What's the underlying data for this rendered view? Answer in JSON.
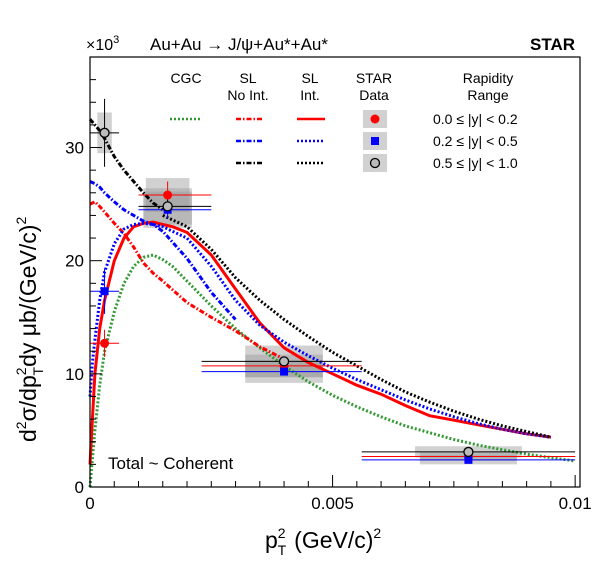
{
  "chart_data": {
    "type": "line",
    "title": "Au+Au → J/ψ+Au*+Au*",
    "experiment": "STAR",
    "annotation": "Total ~ Coherent",
    "x_multiplier": "",
    "y_multiplier": "×10",
    "y_multiplier_exp": "3",
    "xlabel_main": "p",
    "xlabel_sup": "2",
    "xlabel_sub": "T",
    "xlabel_rest": "(GeV/c)",
    "xlabel_rest_sup": "2",
    "ylabel": "d²σ/dp_T²dy μb/(GeV/c)²",
    "ylabel_parts": {
      "a": "d",
      "a_sup": "2",
      "b": "σ/dp",
      "b_sub": "T",
      "b_sup": "2",
      "c": "dy μb/(GeV/c)",
      "c_sup": "2"
    },
    "xlim": [
      0,
      0.0101
    ],
    "ylim": [
      0,
      38
    ],
    "xticks": [
      0,
      0.005,
      0.01
    ],
    "xtick_labels": [
      "0",
      "0.005",
      "0.01"
    ],
    "yticks": [
      0,
      10,
      20,
      30
    ],
    "ytick_labels": [
      "0",
      "10",
      "20",
      "30"
    ],
    "legend": {
      "columns": [
        {
          "line1": "CGC",
          "line2": ""
        },
        {
          "line1": "SL",
          "line2": "No Int."
        },
        {
          "line1": "SL",
          "line2": "Int."
        },
        {
          "line1": "STAR",
          "line2": "Data"
        },
        {
          "line1": "Rapidity",
          "line2": "Range"
        }
      ],
      "rows": [
        {
          "range": "0.0 ≤ |y| < 0.2",
          "color": "#ff0000"
        },
        {
          "range": "0.2 ≤ |y| < 0.5",
          "color": "#0000ff"
        },
        {
          "range": "0.5 ≤ |y| < 1.0",
          "color": "#000000"
        }
      ],
      "cgc_color": "#339933",
      "placement": "top"
    },
    "series": [
      {
        "model": "CGC",
        "rapidity": "0.0 ≤ |y| < 0.2",
        "color": "#339933",
        "style": "dotted",
        "x": [
          0,
          5e-05,
          0.0001,
          0.0002,
          0.0003,
          0.0005,
          0.0007,
          0.0009,
          0.0011,
          0.0013,
          0.0015,
          0.0017,
          0.002,
          0.0025,
          0.003,
          0.0035,
          0.004,
          0.0045,
          0.005,
          0.0055,
          0.006,
          0.0065,
          0.007,
          0.0075,
          0.008,
          0.0085,
          0.009,
          0.0095,
          0.01
        ],
        "y": [
          0,
          2.5,
          5,
          9,
          12,
          15.5,
          18,
          19.5,
          20.3,
          20.5,
          20.1,
          19.5,
          18.2,
          16,
          14,
          12.3,
          10.7,
          9.3,
          8.1,
          7.1,
          6.2,
          5.4,
          4.8,
          4.2,
          3.7,
          3.3,
          2.9,
          2.6,
          2.3
        ]
      },
      {
        "model": "SL No Int.",
        "rapidity": "0.0 ≤ |y| < 0.2",
        "color": "#ff0000",
        "style": "dash-dot",
        "x": [
          0,
          0.0001,
          0.0002,
          0.0003,
          0.0005,
          0.0007,
          0.0009,
          0.0011,
          0.0013,
          0.0015,
          0.002,
          0.0025,
          0.003,
          0.0035,
          0.004
        ],
        "y": [
          25,
          25.2,
          24.8,
          24.3,
          23.3,
          22.4,
          21.2,
          19.8,
          18.9,
          18.2,
          16.3,
          15,
          13.8,
          12.4,
          11.3
        ]
      },
      {
        "model": "SL Int.",
        "rapidity": "0.0 ≤ |y| < 0.2",
        "color": "#ff0000",
        "style": "solid",
        "x": [
          0,
          5e-05,
          0.0001,
          0.0002,
          0.0003,
          0.0005,
          0.0007,
          0.0009,
          0.0011,
          0.0013,
          0.0015,
          0.0017,
          0.002,
          0.0025,
          0.003,
          0.0035,
          0.004,
          0.0045,
          0.005,
          0.0055,
          0.006,
          0.0065,
          0.007,
          0.0075,
          0.008,
          0.0085,
          0.009,
          0.0095
        ],
        "y": [
          2,
          6,
          10,
          14,
          16.5,
          20,
          22,
          23,
          23.3,
          23.4,
          23.2,
          23,
          22.5,
          20.5,
          17.5,
          14.5,
          12.3,
          11,
          10,
          9,
          8.2,
          7.2,
          6.3,
          5.9,
          5.5,
          5.1,
          4.7,
          4.4
        ]
      },
      {
        "model": "SL No Int.",
        "rapidity": "0.2 ≤ |y| < 0.5",
        "color": "#0000ff",
        "style": "dash-dot",
        "x": [
          0,
          0.0001,
          0.0002,
          0.0003,
          0.0005,
          0.0007,
          0.0009,
          0.0011,
          0.0013,
          0.0015,
          0.002,
          0.0025,
          0.003
        ],
        "y": [
          27,
          26.8,
          26.5,
          26,
          25.2,
          24.5,
          24,
          23.5,
          23.2,
          22.6,
          20.2,
          17.2,
          14.8
        ]
      },
      {
        "model": "SL Int.",
        "rapidity": "0.2 ≤ |y| < 0.5",
        "color": "#0000ff",
        "style": "dotted",
        "x": [
          0,
          5e-05,
          0.0001,
          0.0002,
          0.0003,
          0.0005,
          0.0007,
          0.0009,
          0.0011,
          0.0013,
          0.0015,
          0.0017,
          0.002,
          0.0025,
          0.003,
          0.0035,
          0.004,
          0.0045,
          0.005,
          0.0055,
          0.006,
          0.0065,
          0.007,
          0.0075,
          0.008,
          0.0085,
          0.009,
          0.0095
        ],
        "y": [
          8,
          11,
          13,
          16.5,
          19,
          21.5,
          22.8,
          23.2,
          23.3,
          23.2,
          23,
          22.6,
          22,
          19.5,
          16.5,
          14.3,
          12.8,
          11.6,
          10.5,
          9.5,
          8.6,
          7.7,
          6.9,
          6.2,
          5.6,
          5.1,
          4.7,
          4.4
        ]
      },
      {
        "model": "SL No Int.",
        "rapidity": "0.5 ≤ |y| < 1.0",
        "color": "#000000",
        "style": "dash-dot",
        "x": [
          0,
          0.0001,
          0.0002,
          0.0003,
          0.0004,
          0.0005,
          0.0007,
          0.0009,
          0.0011,
          0.0013,
          0.0015
        ],
        "y": [
          32.5,
          32,
          31.5,
          30.8,
          30,
          29.2,
          28,
          27,
          26,
          25.1,
          24.5
        ]
      },
      {
        "model": "SL Int.",
        "rapidity": "0.5 ≤ |y| < 1.0",
        "color": "#000000",
        "style": "dotted",
        "x": [
          0.0015,
          0.0017,
          0.002,
          0.0025,
          0.003,
          0.0035,
          0.004,
          0.0045,
          0.005,
          0.0055,
          0.006,
          0.0065,
          0.007,
          0.0075,
          0.008,
          0.0085,
          0.009,
          0.0095
        ],
        "y": [
          24,
          23.6,
          23,
          21,
          18.5,
          16.5,
          14.8,
          13.3,
          11.9,
          10.7,
          9.5,
          8.4,
          7.5,
          6.7,
          6,
          5.4,
          4.9,
          4.4
        ]
      }
    ],
    "data_points": [
      {
        "rapidity": "0.0 ≤ |y| < 0.2",
        "color": "#ff0000",
        "marker": "circle-filled",
        "x": 0.0003,
        "y": 12.7,
        "x_err": [
          0.0003,
          0.0003
        ],
        "y_err": 1.2,
        "sys_x": 0.00015,
        "sys_y": 0
      },
      {
        "rapidity": "0.0 ≤ |y| < 0.2",
        "color": "#ff0000",
        "marker": "circle-filled",
        "x": 0.0016,
        "y": 25.8,
        "x_err": [
          0.0006,
          0.0009
        ],
        "y_err": 1.2,
        "sys_x": 0.00045,
        "sys_y": 1.5
      },
      {
        "rapidity": "0.0 ≤ |y| < 0.2",
        "color": "#ff0000",
        "marker": "circle-filled",
        "x": 0.004,
        "y": 10.7,
        "x_err": [
          0.0017,
          0.0016
        ],
        "y_err": 0.3,
        "sys_x": 0.0008,
        "sys_y": 1
      },
      {
        "rapidity": "0.0 ≤ |y| < 0.2",
        "color": "#ff0000",
        "marker": "circle-filled",
        "x": 0.0078,
        "y": 2.7,
        "x_err": [
          0.0022,
          0.0022
        ],
        "y_err": 0.2,
        "sys_x": 0.001,
        "sys_y": 0.4
      },
      {
        "rapidity": "0.2 ≤ |y| < 0.5",
        "color": "#0000ff",
        "marker": "square-filled",
        "x": 0.0003,
        "y": 17.3,
        "x_err": [
          0.0003,
          0.0003
        ],
        "y_err": 2,
        "sys_x": 0.00015,
        "sys_y": 0
      },
      {
        "rapidity": "0.2 ≤ |y| < 0.5",
        "color": "#0000ff",
        "marker": "square-filled",
        "x": 0.0016,
        "y": 24.5,
        "x_err": [
          0.0006,
          0.0009
        ],
        "y_err": 0.8,
        "sys_x": 0.0005,
        "sys_y": 1.6
      },
      {
        "rapidity": "0.2 ≤ |y| < 0.5",
        "color": "#0000ff",
        "marker": "square-filled",
        "x": 0.004,
        "y": 10.2,
        "x_err": [
          0.0017,
          0.0016
        ],
        "y_err": 0.3,
        "sys_x": 0.0008,
        "sys_y": 1
      },
      {
        "rapidity": "0.2 ≤ |y| < 0.5",
        "color": "#0000ff",
        "marker": "square-filled",
        "x": 0.0078,
        "y": 2.4,
        "x_err": [
          0.0022,
          0.0022
        ],
        "y_err": 0.2,
        "sys_x": 0.001,
        "sys_y": 0.4
      },
      {
        "rapidity": "0.5 ≤ |y| < 1.0",
        "color": "#000000",
        "marker": "circle-open",
        "x": 0.0003,
        "y": 31.3,
        "x_err": [
          0.0003,
          0.0003
        ],
        "y_err": 3,
        "sys_x": 0.00015,
        "sys_y": 1.8
      },
      {
        "rapidity": "0.5 ≤ |y| < 1.0",
        "color": "#000000",
        "marker": "circle-open",
        "x": 0.0016,
        "y": 24.8,
        "x_err": [
          0.0006,
          0.0009
        ],
        "y_err": 0.6,
        "sys_x": 0.0005,
        "sys_y": 1.6
      },
      {
        "rapidity": "0.5 ≤ |y| < 1.0",
        "color": "#000000",
        "marker": "circle-open",
        "x": 0.004,
        "y": 11.1,
        "x_err": [
          0.0017,
          0.0016
        ],
        "y_err": 0.3,
        "sys_x": 0.0008,
        "sys_y": 1.4
      },
      {
        "rapidity": "0.5 ≤ |y| < 1.0",
        "color": "#000000",
        "marker": "circle-open",
        "x": 0.0078,
        "y": 3.1,
        "x_err": [
          0.0022,
          0.0022
        ],
        "y_err": 0.3,
        "sys_x": 0.0011,
        "sys_y": 0.5
      }
    ],
    "grid": false
  }
}
